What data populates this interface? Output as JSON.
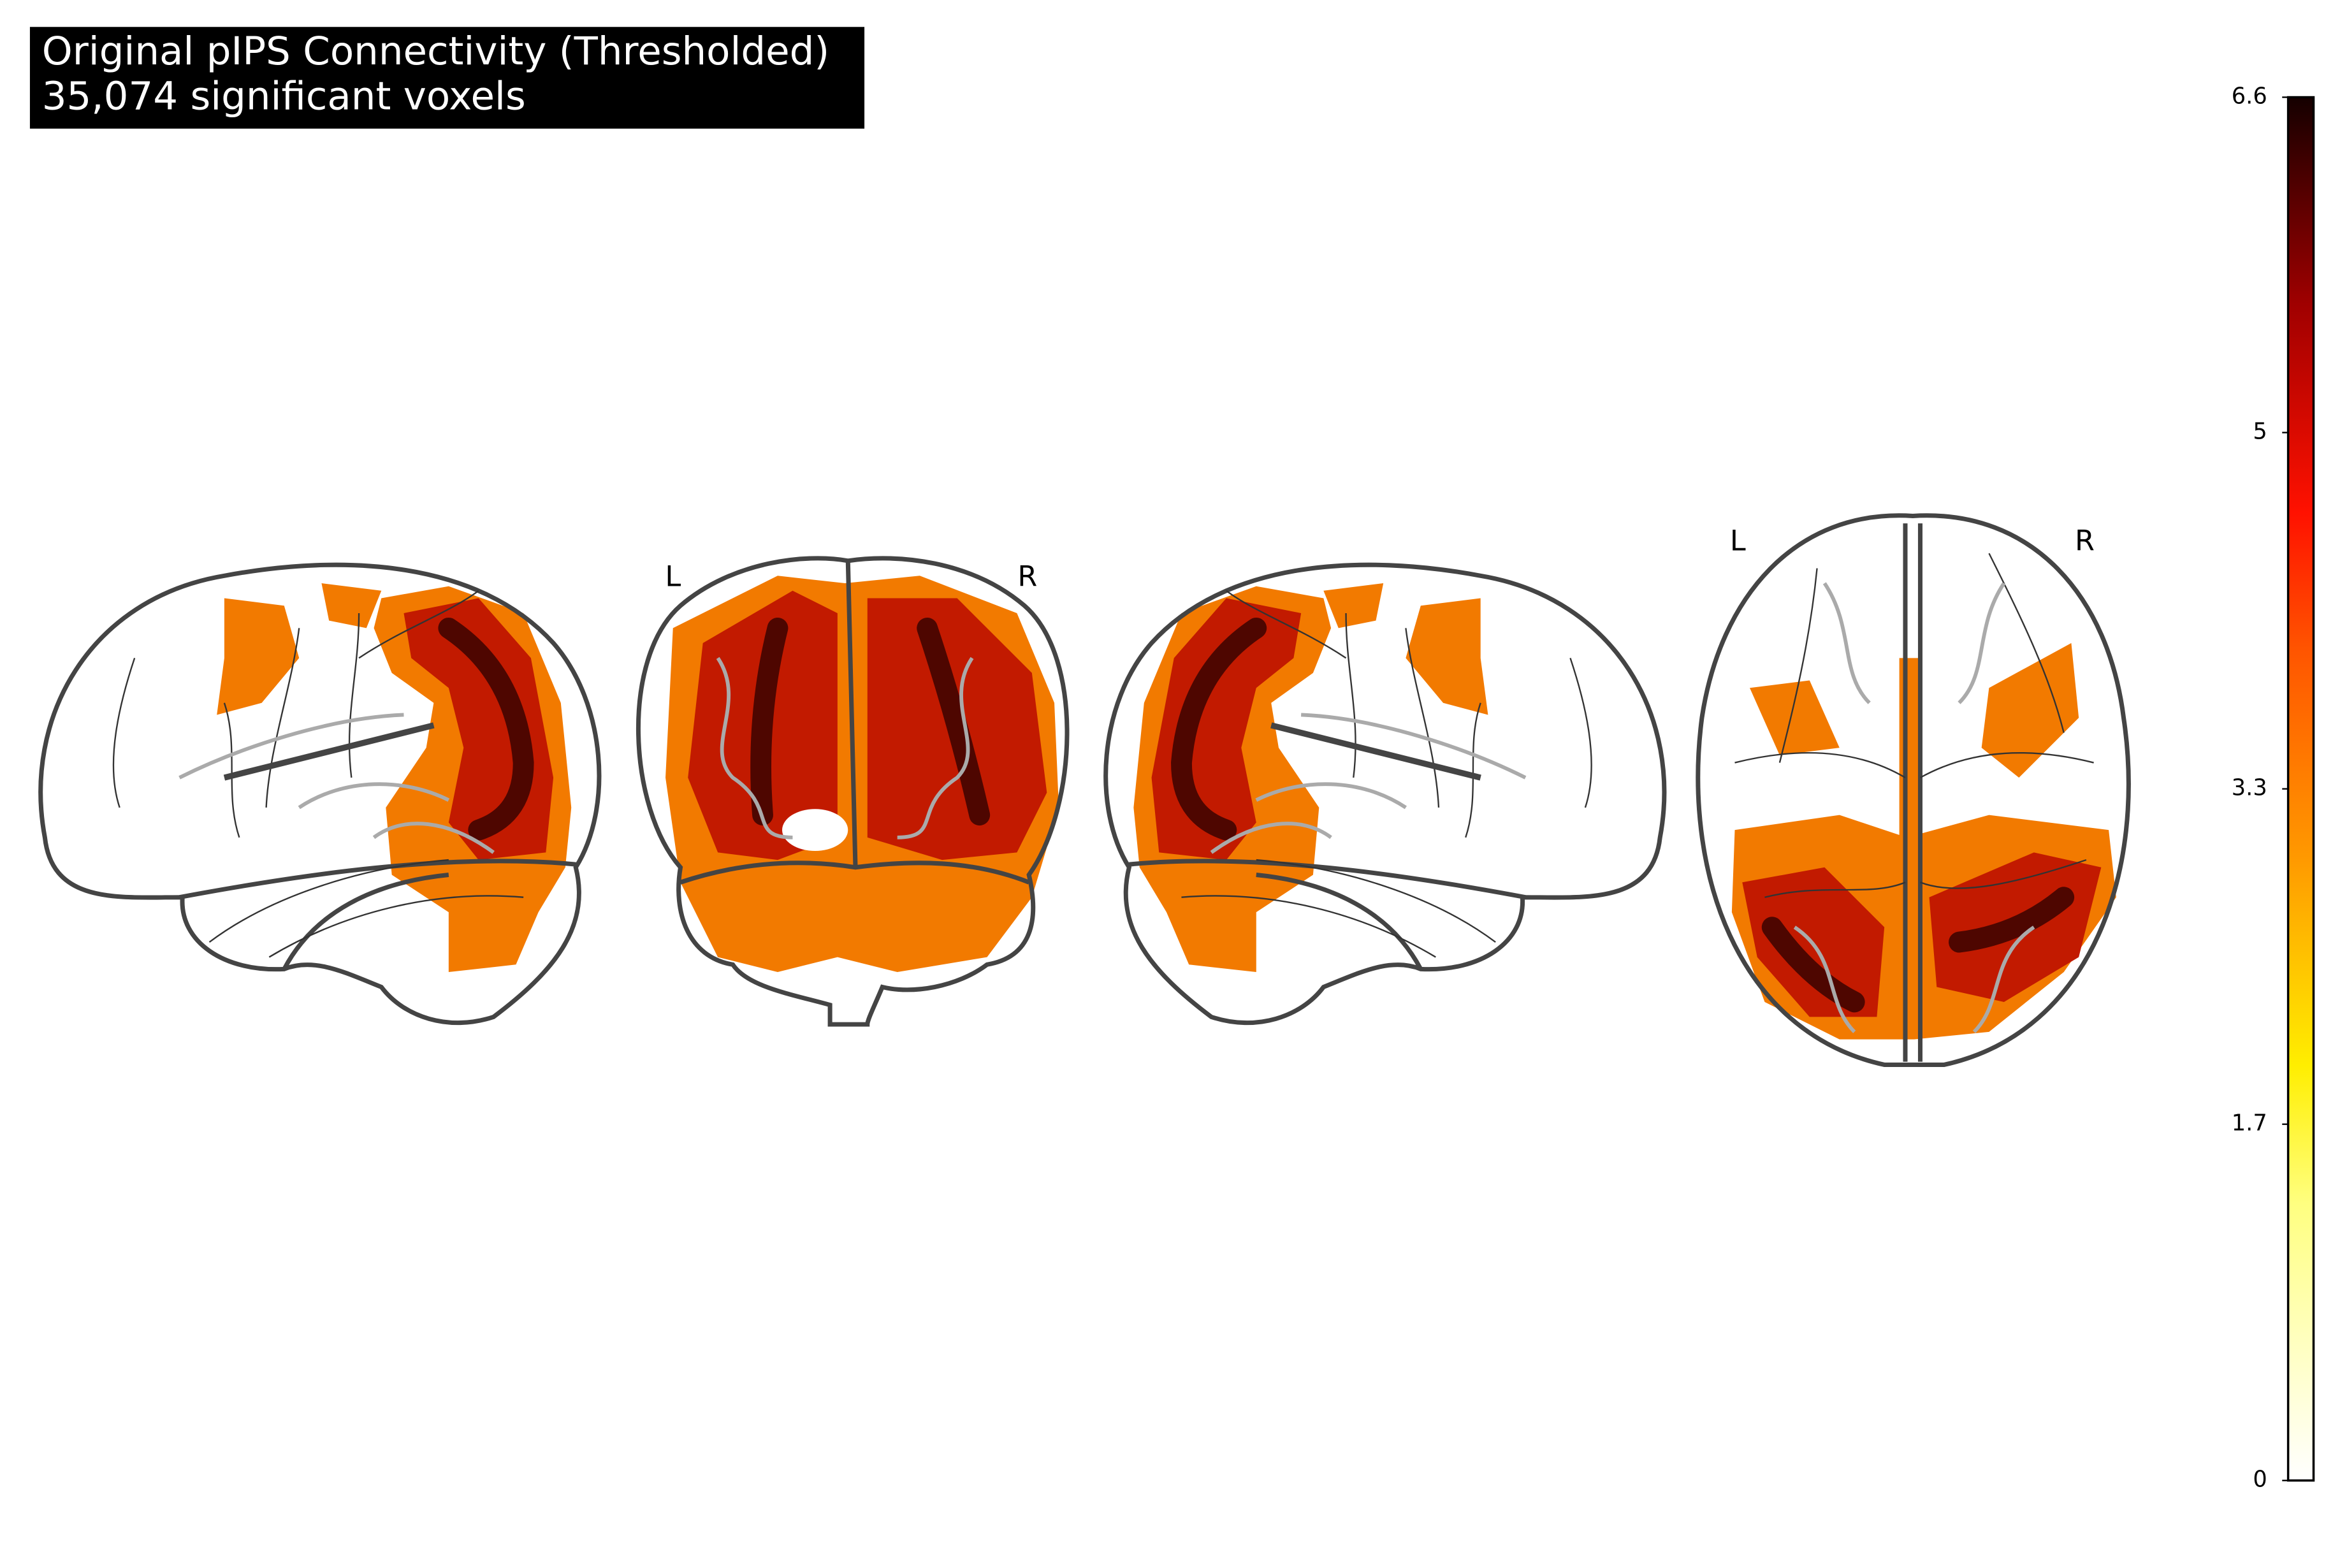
{
  "title": {
    "lines": [
      "Original pIPS Connectivity (Thresholded)",
      "35,074 significant voxels"
    ]
  },
  "views": {
    "coronal": {
      "labels": [
        "L",
        "R"
      ]
    },
    "axial": {
      "labels": [
        "L",
        "R"
      ]
    }
  },
  "colorbar": {
    "range": [
      0,
      6.6
    ],
    "ticks": [
      0,
      1.7,
      3.3,
      5,
      6.6
    ]
  }
}
